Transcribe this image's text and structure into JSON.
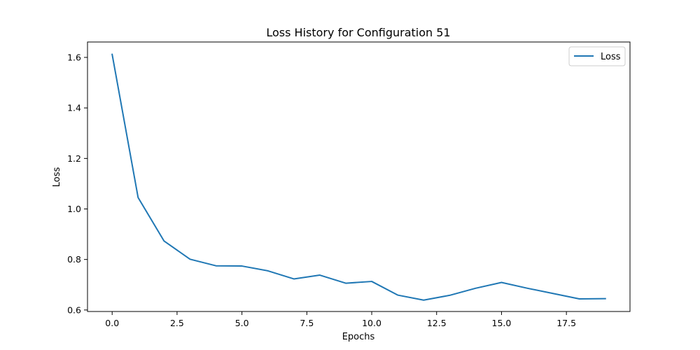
{
  "chart_data": {
    "type": "line",
    "title": "Loss History for Configuration 51",
    "xlabel": "Epochs",
    "ylabel": "Loss",
    "x": [
      0,
      1,
      2,
      3,
      4,
      5,
      6,
      7,
      8,
      9,
      10,
      11,
      12,
      13,
      14,
      15,
      16,
      17,
      18,
      19
    ],
    "series": [
      {
        "name": "Loss",
        "color": "#1f77b4",
        "values": [
          1.612,
          1.045,
          0.873,
          0.801,
          0.775,
          0.774,
          0.755,
          0.723,
          0.738,
          0.706,
          0.713,
          0.659,
          0.639,
          0.658,
          0.686,
          0.709,
          0.686,
          0.665,
          0.644,
          0.645
        ]
      }
    ],
    "xlim": [
      -0.95,
      19.95
    ],
    "ylim": [
      0.594,
      1.661
    ],
    "xticks": [
      0.0,
      2.5,
      5.0,
      7.5,
      10.0,
      12.5,
      15.0,
      17.5
    ],
    "xtick_labels": [
      "0.0",
      "2.5",
      "5.0",
      "7.5",
      "10.0",
      "12.5",
      "15.0",
      "17.5"
    ],
    "yticks": [
      0.6,
      0.8,
      1.0,
      1.2,
      1.4,
      1.6
    ],
    "ytick_labels": [
      "0.6",
      "0.8",
      "1.0",
      "1.2",
      "1.4",
      "1.6"
    ],
    "grid": false,
    "legend_position": "top-right"
  }
}
